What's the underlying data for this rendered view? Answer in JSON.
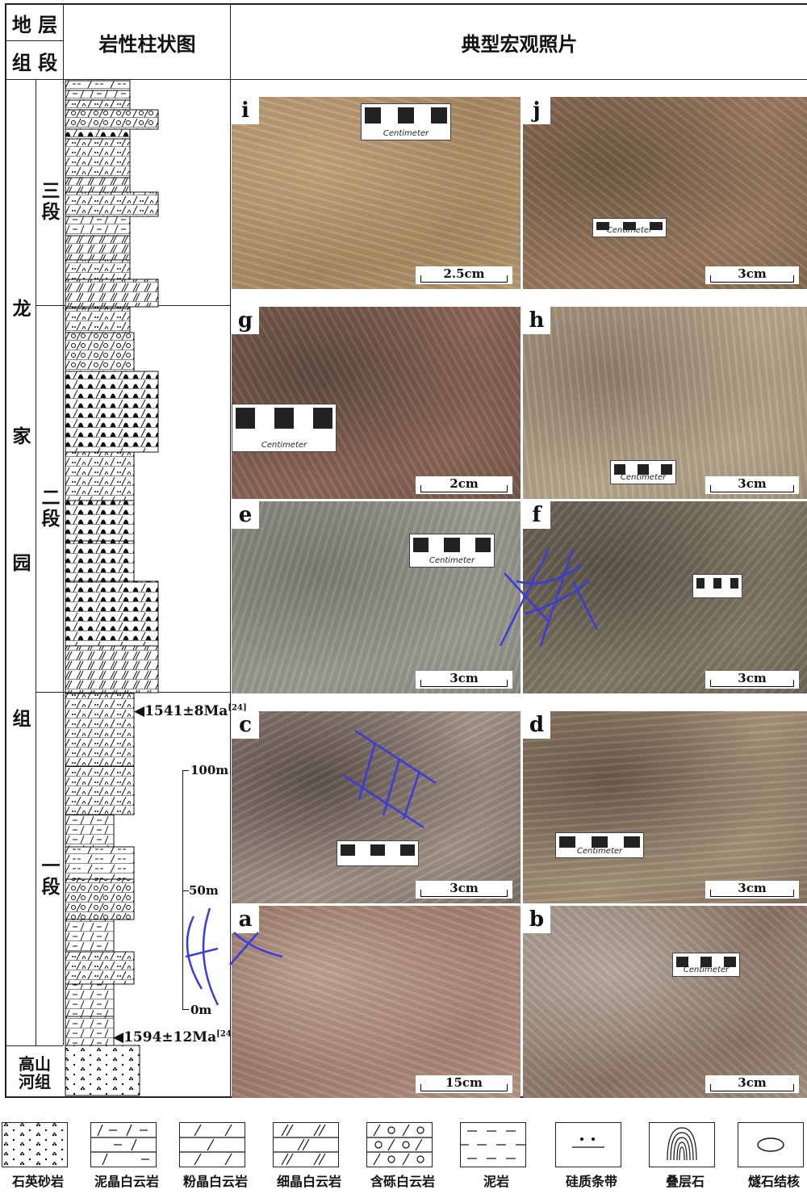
{
  "header": {
    "stratum": "地 层",
    "formation_member": "组 段",
    "column_title": "岩性柱状图",
    "photos_title": "典型宏观照片"
  },
  "units": {
    "formation": "龙家园组",
    "formation_chars": [
      "龙",
      "家",
      "园",
      "组"
    ],
    "member3": [
      "三",
      "段"
    ],
    "member2": [
      "二",
      "段"
    ],
    "member1": [
      "一",
      "段"
    ],
    "underlying_line1": "高山",
    "underlying_line2": "河组"
  },
  "ages": {
    "upper": "1541±8Ma",
    "upper_ref": "[24]",
    "lower": "1594±12Ma",
    "lower_ref": "[24]"
  },
  "scale": {
    "top": "100m",
    "mid": "50m",
    "bottom": "0m"
  },
  "panels": [
    {
      "id": "i",
      "scale": "2.5cm",
      "colors": [
        "#b89a74",
        "#a88a62",
        "#c4a47c"
      ],
      "card_label": "Centimeter"
    },
    {
      "id": "j",
      "scale": "3cm",
      "colors": [
        "#8d6b52",
        "#9a7a5e",
        "#6f5a44"
      ],
      "card_label": "Centimeter"
    },
    {
      "id": "g",
      "scale": "2cm",
      "colors": [
        "#7a5a4c",
        "#8c6656",
        "#5e4a40"
      ],
      "card_label": "Centimeter"
    },
    {
      "id": "h",
      "scale": "3cm",
      "colors": [
        "#a89880",
        "#b8a88e",
        "#8e806a"
      ],
      "card_label": "Centimeter"
    },
    {
      "id": "e",
      "scale": "3cm",
      "colors": [
        "#8e8e86",
        "#9c9c92",
        "#7c7c74"
      ],
      "card_label": "Centimeter"
    },
    {
      "id": "f",
      "scale": "3cm",
      "colors": [
        "#6e6656",
        "#847a66",
        "#5a5448"
      ],
      "card_label": ""
    },
    {
      "id": "c",
      "scale": "3cm",
      "colors": [
        "#8a7a70",
        "#a39488",
        "#5e524c"
      ],
      "card_label": ""
    },
    {
      "id": "d",
      "scale": "3cm",
      "colors": [
        "#8c7862",
        "#a6927a",
        "#6a5a4a"
      ],
      "card_label": "Centimeter"
    },
    {
      "id": "a",
      "scale": "15cm",
      "colors": [
        "#8e6a5a",
        "#a88474",
        "#c0a494"
      ],
      "card_label": ""
    },
    {
      "id": "b",
      "scale": "3cm",
      "colors": [
        "#a29488",
        "#8c7464",
        "#b8aca0"
      ],
      "card_label": "Centimeter"
    }
  ],
  "legend": [
    {
      "label": "石英砂岩",
      "pattern": "sandstone"
    },
    {
      "label": "泥晶白云岩",
      "pattern": "micritic"
    },
    {
      "label": "粉晶白云岩",
      "pattern": "silty"
    },
    {
      "label": "细晶白云岩",
      "pattern": "fine"
    },
    {
      "label": "含砾白云岩",
      "pattern": "gravel"
    },
    {
      "label": "泥岩",
      "pattern": "mudstone"
    },
    {
      "label": "硅质条带",
      "pattern": "silica"
    },
    {
      "label": "叠层石",
      "pattern": "stromatolite"
    },
    {
      "label": "燧石结核",
      "pattern": "chert"
    }
  ],
  "colors": {
    "line": "#222222",
    "annotation": "#3a3ae0"
  }
}
